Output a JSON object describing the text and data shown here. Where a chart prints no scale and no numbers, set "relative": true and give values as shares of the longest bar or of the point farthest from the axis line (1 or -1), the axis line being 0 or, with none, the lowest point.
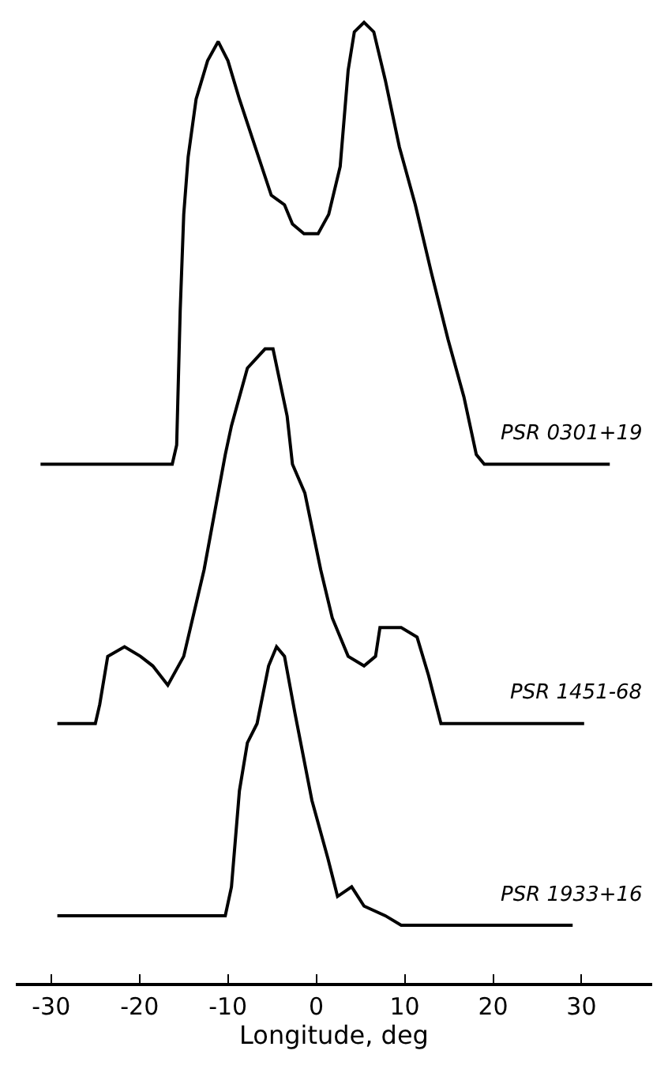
{
  "chart_data": {
    "type": "line",
    "relative": true,
    "xlabel": "Longitude, deg",
    "xlim": [
      -34,
      38
    ],
    "xticks": [
      -30,
      -20,
      -10,
      0,
      10,
      20,
      30
    ],
    "grid": false,
    "legend": false,
    "marker": "none",
    "line_style": "solid",
    "series": [
      {
        "name": "PSR 0301+19",
        "color": "#000000",
        "x": [
          -31.2,
          -21.7,
          -18.1,
          -16.3,
          -15.8,
          -15.4,
          -15.0,
          -14.5,
          -13.6,
          -12.3,
          -11.1,
          -10.0,
          -8.7,
          -6.9,
          -5.1,
          -3.6,
          -2.7,
          -1.4,
          0.2,
          1.4,
          2.7,
          3.6,
          4.3,
          5.4,
          6.5,
          7.8,
          9.4,
          11.2,
          13.0,
          14.9,
          16.7,
          18.1,
          19.0,
          23.6,
          27.2,
          33.2
        ],
        "values": [
          0.54,
          0.54,
          0.54,
          0.54,
          0.56,
          0.7,
          0.8,
          0.86,
          0.92,
          0.96,
          0.98,
          0.96,
          0.92,
          0.87,
          0.82,
          0.81,
          0.79,
          0.78,
          0.78,
          0.8,
          0.85,
          0.95,
          0.99,
          1,
          0.99,
          0.94,
          0.87,
          0.81,
          0.74,
          0.67,
          0.61,
          0.55,
          0.54,
          0.54,
          0.54,
          0.54
        ]
      },
      {
        "name": "PSR 1451-68",
        "color": "#000000",
        "x": [
          -29.3,
          -25.0,
          -24.5,
          -23.6,
          -21.7,
          -19.9,
          -18.5,
          -16.8,
          -15.0,
          -12.7,
          -10.3,
          -9.6,
          -7.8,
          -5.8,
          -4.9,
          -3.3,
          -2.7,
          -1.3,
          0.5,
          1.8,
          3.6,
          5.4,
          6.7,
          7.2,
          8.5,
          9.6,
          11.4,
          12.7,
          14.1,
          15.0,
          21.2,
          30.3
        ],
        "values": [
          0.27,
          0.27,
          0.29,
          0.34,
          0.35,
          0.34,
          0.33,
          0.31,
          0.34,
          0.43,
          0.55,
          0.58,
          0.64,
          0.66,
          0.66,
          0.59,
          0.54,
          0.51,
          0.43,
          0.38,
          0.34,
          0.33,
          0.34,
          0.37,
          0.37,
          0.37,
          0.36,
          0.32,
          0.27,
          0.27,
          0.27,
          0.27
        ]
      },
      {
        "name": "PSR 1933+16",
        "color": "#000000",
        "x": [
          -29.3,
          -12.1,
          -10.3,
          -9.6,
          -8.7,
          -7.8,
          -6.7,
          -5.4,
          -4.5,
          -3.6,
          -2.4,
          -0.5,
          1.3,
          2.4,
          4.0,
          5.4,
          7.8,
          9.6,
          18.1,
          29.0
        ],
        "values": [
          0.07,
          0.07,
          0.07,
          0.1,
          0.2,
          0.25,
          0.27,
          0.33,
          0.35,
          0.34,
          0.28,
          0.19,
          0.13,
          0.09,
          0.1,
          0.08,
          0.07,
          0.06,
          0.06,
          0.06
        ]
      }
    ]
  }
}
